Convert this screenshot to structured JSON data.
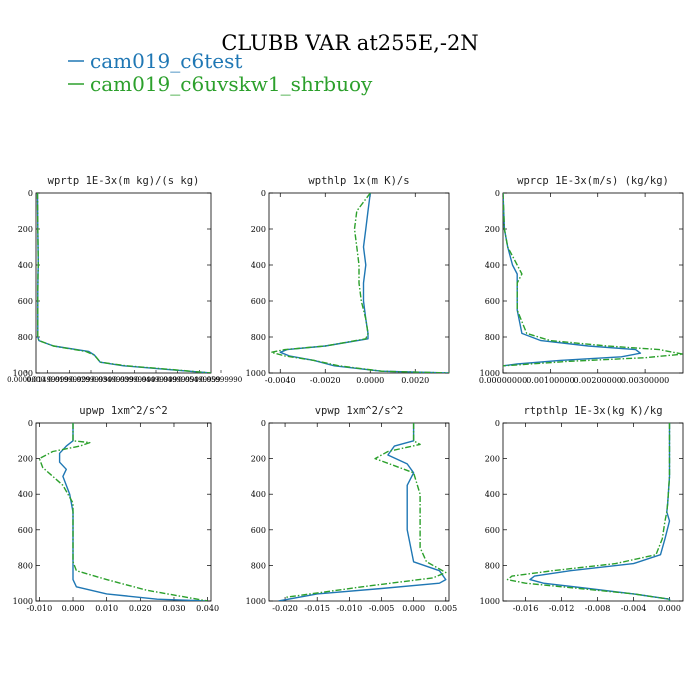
{
  "figure": {
    "title": "CLUBB VAR at255E,-2N",
    "legend": [
      {
        "label": "cam019_c6test",
        "color": "#1f77b4",
        "dash": "solid"
      },
      {
        "label": "cam019_c6uvskw1_shrbuoy",
        "color": "#2ca02c",
        "dash": "dashdot"
      }
    ]
  },
  "chart_data": [
    {
      "type": "line",
      "title": "wprtp  1E-3x(m kg)/(s kg)",
      "ylim": [
        1000,
        0
      ],
      "yticks": [
        0,
        200,
        400,
        600,
        800,
        1000
      ],
      "ytick_labels": [
        "0",
        "200",
        "400",
        "600",
        "800",
        "1000"
      ],
      "xlim": [
        0,
        0.06
      ],
      "xtick_labels": [
        "0.0000000",
        "0.01499999",
        "0.01999999",
        "0.02999999",
        "0.03499999",
        "0.03999999",
        "0.04499999",
        "0.04999999",
        "0.05499999",
        "0.05999990"
      ],
      "series": [
        {
          "name": "cam019_c6test",
          "x": [
            0.0005,
            0.0006,
            0.0008,
            0.0007,
            0.0006,
            0.0006,
            0.0006,
            0.0006,
            0.001,
            0.006,
            0.018,
            0.02,
            0.021,
            0.022,
            0.03,
            0.045,
            0.06
          ],
          "y": [
            0,
            200,
            400,
            450,
            550,
            650,
            750,
            800,
            820,
            850,
            880,
            900,
            920,
            940,
            960,
            980,
            1000
          ]
        },
        {
          "name": "cam019_c6uvskw1_shrbuoy",
          "x": [
            0.0005,
            0.0006,
            0.0008,
            0.0007,
            0.0006,
            0.0006,
            0.0006,
            0.0006,
            0.001,
            0.006,
            0.017,
            0.02,
            0.021,
            0.022,
            0.031,
            0.046,
            0.06
          ],
          "y": [
            0,
            200,
            400,
            450,
            550,
            650,
            750,
            800,
            820,
            850,
            880,
            900,
            920,
            940,
            960,
            980,
            1000
          ]
        }
      ]
    },
    {
      "type": "line",
      "title": "wpthlp  1x(m K)/s",
      "ylim": [
        1000,
        0
      ],
      "yticks": [
        0,
        200,
        400,
        600,
        800,
        1000
      ],
      "ytick_labels": [
        "0",
        "200",
        "400",
        "600",
        "800",
        "1000"
      ],
      "xlim": [
        -0.0045,
        0.0035
      ],
      "xticks": [
        -0.004,
        -0.002,
        0.0,
        0.002
      ],
      "xtick_labels": [
        "-0.0040",
        "-0.0020",
        "0.0000",
        "0.0020"
      ],
      "series": [
        {
          "name": "cam019_c6test",
          "x": [
            0.0,
            -0.0001,
            -0.0002,
            -0.0003,
            -0.0002,
            -0.0003,
            -0.0003,
            -0.0002,
            -0.0001,
            -0.0001,
            -0.002,
            -0.0037,
            -0.004,
            -0.0036,
            -0.0025,
            -0.0016,
            0.0005,
            0.0035
          ],
          "y": [
            0,
            100,
            200,
            300,
            400,
            500,
            600,
            700,
            780,
            810,
            850,
            870,
            885,
            905,
            930,
            960,
            990,
            1000
          ]
        },
        {
          "name": "cam019_c6uvskw1_shrbuoy",
          "x": [
            0.0,
            -0.0006,
            -0.0007,
            -0.0006,
            -0.0005,
            -0.0005,
            -0.0004,
            -0.0002,
            -0.0001,
            -0.0002,
            -0.002,
            -0.0038,
            -0.0044,
            -0.0038,
            -0.0025,
            -0.0014,
            0.0005,
            0.0035
          ],
          "y": [
            0,
            100,
            200,
            300,
            400,
            500,
            600,
            700,
            780,
            810,
            850,
            870,
            885,
            905,
            930,
            960,
            990,
            1000
          ]
        }
      ]
    },
    {
      "type": "line",
      "title": "wprcp  1E-3x(m/s) (kg/kg)",
      "ylim": [
        1000,
        0
      ],
      "yticks": [
        0,
        200,
        400,
        600,
        800,
        1000
      ],
      "ytick_labels": [
        "0",
        "200",
        "400",
        "600",
        "800",
        "1000"
      ],
      "xlim": [
        0.0,
        0.0038
      ],
      "xticks": [
        0.0,
        0.001,
        0.002,
        0.003
      ],
      "xtick_labels": [
        "0.00000000",
        "0.00100000",
        "0.00200000",
        "0.00300000"
      ],
      "series": [
        {
          "name": "cam019_c6test",
          "x": [
            0.0,
            3e-05,
            0.0001,
            0.0002,
            0.0003,
            0.0003,
            0.0003,
            0.0004,
            0.0008,
            0.0018,
            0.0028,
            0.0029,
            0.0025,
            0.0012,
            0.0003,
            0.0
          ],
          "y": [
            0,
            200,
            300,
            400,
            450,
            500,
            650,
            780,
            820,
            850,
            870,
            890,
            910,
            930,
            950,
            960
          ]
        },
        {
          "name": "cam019_c6uvskw1_shrbuoy",
          "x": [
            0.0,
            3e-05,
            0.0001,
            0.0003,
            0.0004,
            0.0003,
            0.0003,
            0.0005,
            0.001,
            0.0022,
            0.0033,
            0.0038,
            0.003,
            0.0014,
            0.0003,
            0.0
          ],
          "y": [
            0,
            200,
            300,
            400,
            450,
            500,
            650,
            780,
            820,
            850,
            870,
            895,
            915,
            935,
            955,
            960
          ]
        }
      ]
    },
    {
      "type": "line",
      "title": "upwp  1xm^2/s^2",
      "ylim": [
        1000,
        0
      ],
      "yticks": [
        0,
        200,
        400,
        600,
        800,
        1000
      ],
      "ytick_labels": [
        "0",
        "200",
        "400",
        "600",
        "800",
        "1000"
      ],
      "xlim": [
        -0.011,
        0.041
      ],
      "xticks": [
        -0.01,
        0.0,
        0.01,
        0.02,
        0.03,
        0.04
      ],
      "xtick_labels": [
        "-0.010",
        "0.000",
        "0.010",
        "0.020",
        "0.030",
        "0.040"
      ],
      "series": [
        {
          "name": "cam019_c6test",
          "x": [
            0.0,
            0.0,
            -0.002,
            -0.004,
            -0.004,
            -0.002,
            -0.003,
            -0.001,
            0.0,
            0.0,
            0.0,
            0.0,
            0.001,
            0.01,
            0.025,
            0.04
          ],
          "y": [
            0,
            100,
            130,
            170,
            220,
            260,
            300,
            400,
            500,
            700,
            850,
            880,
            920,
            960,
            990,
            1000
          ]
        },
        {
          "name": "cam019_c6uvskw1_shrbuoy",
          "x": [
            0.0,
            0.0,
            0.005,
            0.002,
            -0.006,
            -0.01,
            -0.009,
            -0.003,
            0.0,
            0.0,
            0.0,
            0.001,
            0.01,
            0.022,
            0.04
          ],
          "y": [
            0,
            100,
            110,
            130,
            160,
            200,
            250,
            350,
            450,
            600,
            780,
            830,
            880,
            940,
            1000
          ]
        }
      ]
    },
    {
      "type": "line",
      "title": "vpwp  1xm^2/s^2",
      "ylim": [
        1000,
        0
      ],
      "yticks": [
        0,
        200,
        400,
        600,
        800,
        1000
      ],
      "ytick_labels": [
        "0",
        "200",
        "400",
        "600",
        "800",
        "1000"
      ],
      "xlim": [
        -0.0225,
        0.0055
      ],
      "xticks": [
        -0.02,
        -0.015,
        -0.01,
        -0.005,
        0.0,
        0.005
      ],
      "xtick_labels": [
        "-0.020",
        "-0.015",
        "-0.010",
        "-0.005",
        "0.000",
        "0.005"
      ],
      "series": [
        {
          "name": "cam019_c6test",
          "x": [
            0.0,
            0.0,
            -0.003,
            -0.004,
            -0.001,
            0.0,
            -0.001,
            -0.001,
            -0.001,
            0.0,
            0.004,
            0.005,
            0.004,
            -0.005,
            -0.015,
            -0.021
          ],
          "y": [
            0,
            100,
            130,
            180,
            230,
            280,
            350,
            450,
            600,
            780,
            830,
            880,
            900,
            930,
            960,
            1000
          ]
        },
        {
          "name": "cam019_c6uvskw1_shrbuoy",
          "x": [
            0.0,
            0.0,
            0.001,
            -0.004,
            -0.006,
            -0.003,
            0.0,
            0.001,
            0.001,
            0.001,
            0.002,
            0.005,
            0.003,
            -0.008,
            -0.02
          ],
          "y": [
            0,
            100,
            120,
            160,
            200,
            240,
            280,
            400,
            550,
            700,
            780,
            840,
            870,
            920,
            980
          ]
        }
      ]
    },
    {
      "type": "line",
      "title": "rtpthlp  1E-3x(kg K)/kg",
      "ylim": [
        1000,
        0
      ],
      "yticks": [
        0,
        200,
        400,
        600,
        800,
        1000
      ],
      "ytick_labels": [
        "0",
        "200",
        "400",
        "600",
        "800",
        "1000"
      ],
      "xlim": [
        -0.0185,
        0.0015
      ],
      "xticks": [
        -0.016,
        -0.012,
        -0.008,
        -0.004,
        0.0
      ],
      "xtick_labels": [
        "-0.016",
        "-0.012",
        "-0.008",
        "-0.004",
        "0.000"
      ],
      "series": [
        {
          "name": "cam019_c6test",
          "x": [
            0.0,
            0.0,
            -0.0002,
            -0.0003,
            0.0,
            -0.0005,
            -0.001,
            -0.004,
            -0.011,
            -0.015,
            -0.0155,
            -0.014,
            -0.009,
            -0.004,
            0.0,
            0.0
          ],
          "y": [
            0,
            300,
            450,
            500,
            550,
            650,
            740,
            790,
            830,
            860,
            880,
            900,
            930,
            960,
            990,
            1000
          ]
        },
        {
          "name": "cam019_c6uvskw1_shrbuoy",
          "x": [
            0.0,
            0.0,
            -0.0002,
            -0.0003,
            -0.0005,
            -0.0008,
            -0.0015,
            -0.006,
            -0.013,
            -0.0175,
            -0.018,
            -0.016,
            -0.01,
            -0.004,
            0.0,
            0.0
          ],
          "y": [
            0,
            300,
            450,
            500,
            550,
            650,
            740,
            790,
            830,
            860,
            880,
            900,
            930,
            960,
            990,
            1000
          ]
        }
      ]
    }
  ]
}
